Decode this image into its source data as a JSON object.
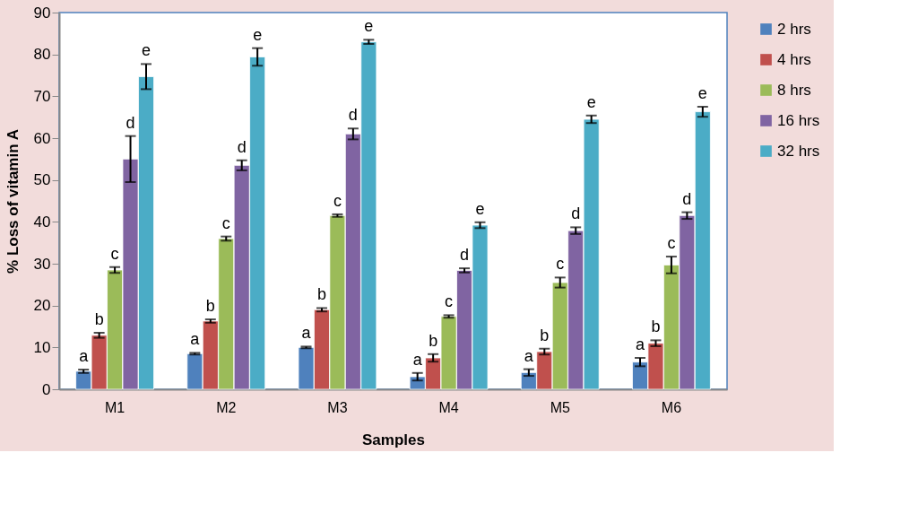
{
  "chart_data": {
    "type": "bar",
    "xlabel": "Samples",
    "ylabel": "% Loss of vitamin A",
    "categories": [
      "M1",
      "M2",
      "M3",
      "M4",
      "M5",
      "M6"
    ],
    "ylim": [
      0,
      90
    ],
    "yticks": [
      0,
      10,
      20,
      30,
      40,
      50,
      60,
      70,
      80,
      90
    ],
    "grid": false,
    "legend": "right",
    "series": [
      {
        "name": "2 hrs",
        "color": "#4f81bd",
        "values": [
          4.3,
          8.5,
          10,
          3,
          4,
          6.5
        ],
        "errors": [
          0.4,
          0.2,
          0.2,
          0.9,
          0.8,
          1.0
        ],
        "value_labels": [
          "a",
          "a",
          "a",
          "a",
          "a",
          "a"
        ]
      },
      {
        "name": "4 hrs",
        "color": "#c0504d",
        "values": [
          12.9,
          16.3,
          19,
          7.5,
          9,
          11
        ],
        "errors": [
          0.6,
          0.4,
          0.4,
          0.9,
          0.7,
          0.7
        ],
        "value_labels": [
          "b",
          "b",
          "b",
          "b",
          "b",
          "b"
        ]
      },
      {
        "name": "8 hrs",
        "color": "#9bbb59",
        "values": [
          28.5,
          36,
          41.5,
          17.4,
          25.5,
          29.7
        ],
        "errors": [
          0.7,
          0.5,
          0.3,
          0.3,
          1.2,
          2.0
        ],
        "value_labels": [
          "c",
          "c",
          "c",
          "c",
          "c",
          "c"
        ]
      },
      {
        "name": "16 hrs",
        "color": "#8064a2",
        "values": [
          55,
          53.5,
          61,
          28.4,
          37.9,
          41.5
        ],
        "errors": [
          5.5,
          1.2,
          1.3,
          0.5,
          0.8,
          0.8
        ],
        "value_labels": [
          "d",
          "d",
          "d",
          "d",
          "d",
          "d"
        ]
      },
      {
        "name": "32 hrs",
        "color": "#4bacc6",
        "values": [
          74.7,
          79.4,
          83,
          39.2,
          64.5,
          66.3
        ],
        "errors": [
          3,
          2.1,
          0.5,
          0.7,
          0.9,
          1.2
        ],
        "value_labels": [
          "e",
          "e",
          "e",
          "e",
          "e",
          "e"
        ]
      }
    ]
  }
}
